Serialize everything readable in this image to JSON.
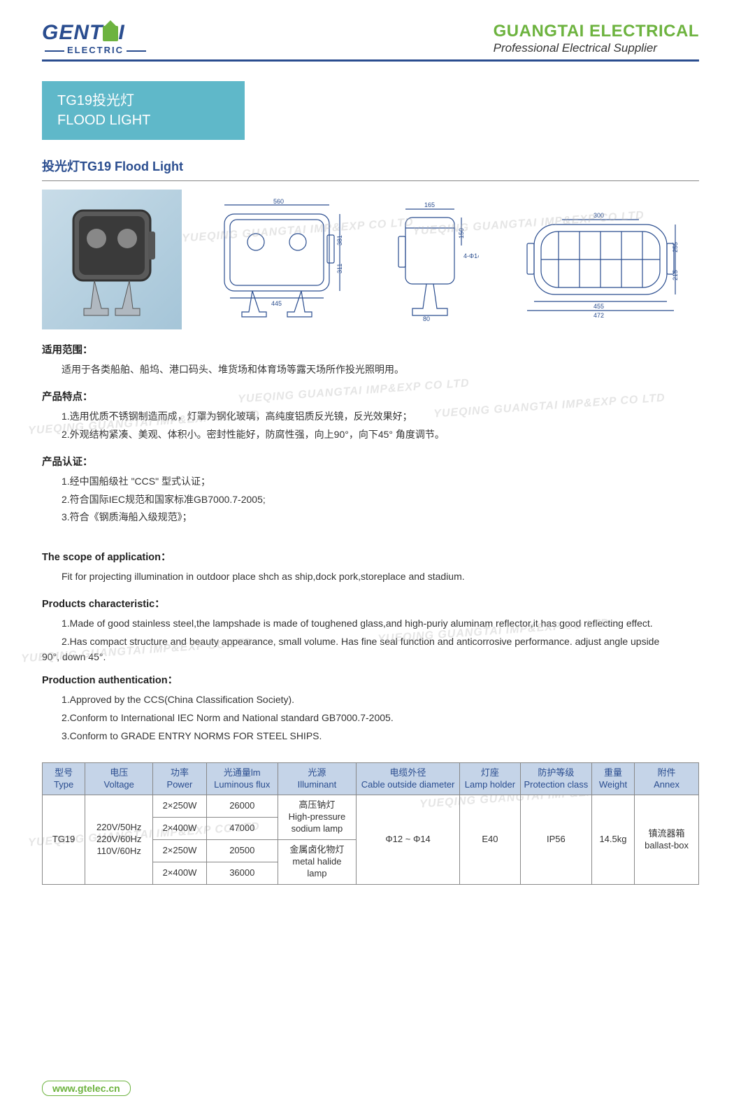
{
  "header": {
    "logo_main": "GENT",
    "logo_main2": "I",
    "logo_sub": "ELECTRIC",
    "company": "GUANGTAI ELECTRICAL",
    "tagline": "Professional Electrical Supplier"
  },
  "title_box": {
    "line1": "TG19投光灯",
    "line2": "FLOOD LIGHT"
  },
  "section_title": "投光灯TG19 Flood Light",
  "watermark_text": "YUEQING GUANGTAI IMP&EXP CO LTD",
  "diagrams": {
    "front": {
      "w": "560",
      "w_inner": "445",
      "h": "311",
      "h_total": "381"
    },
    "side": {
      "w": "165",
      "h": "150",
      "base": "80",
      "hole": "4-Φ14"
    },
    "top": {
      "w": "472",
      "w_inner": "455",
      "h": "255",
      "h_inner": "215",
      "d": "300"
    }
  },
  "cn": {
    "scope_h": "适用范围：",
    "scope_b": "适用于各类船舶、船坞、港口码头、堆货场和体育场等露天场所作投光照明用。",
    "char_h": "产品特点：",
    "char_1": "1.选用优质不锈钢制造而成，灯罩为钢化玻璃，高纯度铝质反光镜，反光效果好；",
    "char_2": "2.外观结构紧凑、美观、体积小。密封性能好，防腐性强，向上90°，向下45° 角度调节。",
    "cert_h": "产品认证：",
    "cert_1": "1.经中国船级社 \"CCS\" 型式认证；",
    "cert_2": "2.符合国际IEC规范和国家标准GB7000.7-2005;",
    "cert_3": "3.符合《钢质海船入级规范》；"
  },
  "en": {
    "scope_h": "The scope of application：",
    "scope_b": "Fit for projecting illumination in outdoor place shch as ship,dock pork,storeplace and stadium.",
    "char_h": "Products characteristic：",
    "char_1": "1.Made of good stainless steel,the lampshade is made of toughened glass,and high-puriy aluminam reflector,it has good reflecting effect.",
    "char_2": "2.Has compact structure and beauty appearance, small volume. Has fine seal function and anticorrosive performance. adjust angle upside",
    "char_2b": "90°, down 45°.",
    "cert_h": "Production authentication：",
    "cert_1": "1.Approved by the CCS(China Classification Society).",
    "cert_2": "2.Conform to International IEC Norm and National standard GB7000.7-2005.",
    "cert_3": "3.Conform to GRADE ENTRY NORMS FOR STEEL SHIPS."
  },
  "table": {
    "headers": {
      "type": "型号\nType",
      "voltage": "电压\nVoltage",
      "power": "功率\nPower",
      "flux": "光通量lm\nLuminous flux",
      "illuminant": "光源\nIlluminant",
      "cable": "电缆外径\nCable outside diameter",
      "holder": "灯座\nLamp holder",
      "protection": "防护等级\nProtection class",
      "weight": "重量\nWeight",
      "annex": "附件\nAnnex"
    },
    "type_val": "TG19",
    "voltage_val": "220V/50Hz\n220V/60Hz\n110V/60Hz",
    "rows": [
      {
        "power": "2×250W",
        "flux": "26000"
      },
      {
        "power": "2×400W",
        "flux": "47000"
      },
      {
        "power": "2×250W",
        "flux": "20500"
      },
      {
        "power": "2×400W",
        "flux": "36000"
      }
    ],
    "illuminant1": "高压钠灯\nHigh-pressure\nsodium lamp",
    "illuminant2": "金属卤化物灯\nmetal halide\nlamp",
    "cable_val": "Φ12 ~ Φ14",
    "holder_val": "E40",
    "protection_val": "IP56",
    "weight_val": "14.5kg",
    "annex_val": "镇流器箱\nballast-box"
  },
  "footer_url": "www.gtelec.cn"
}
